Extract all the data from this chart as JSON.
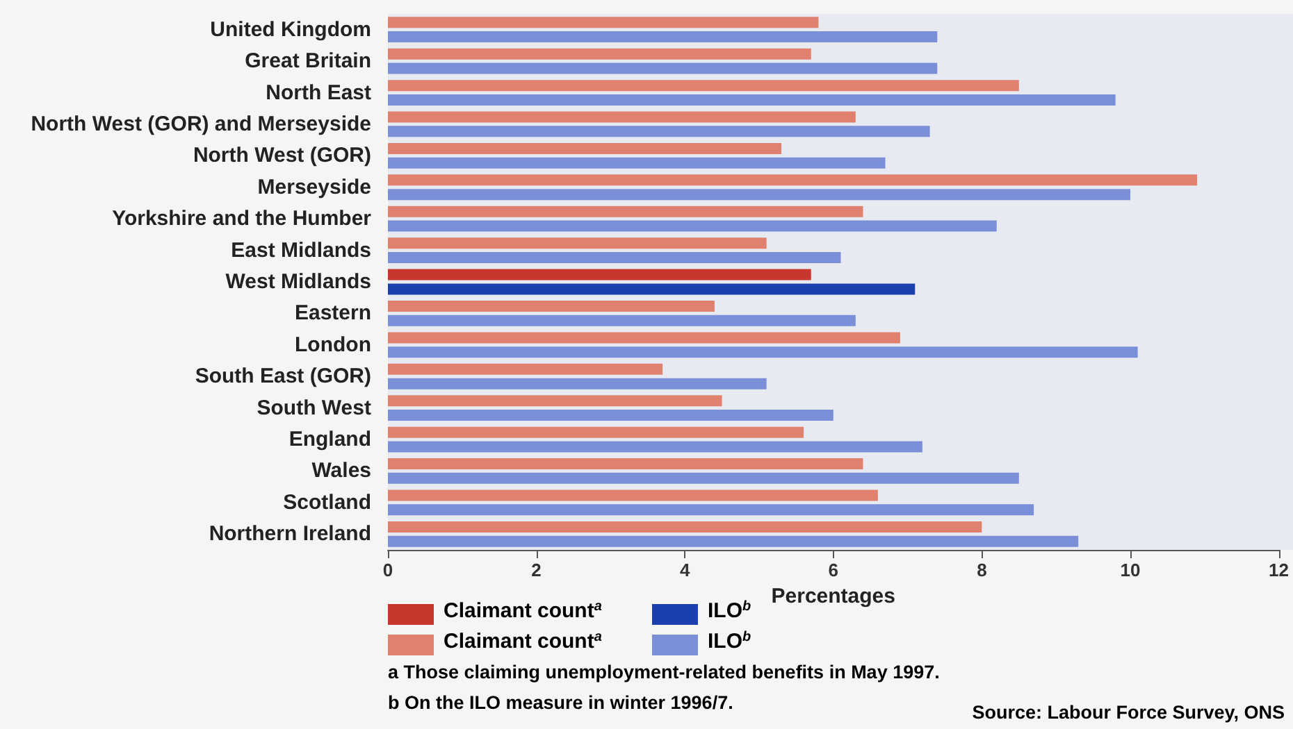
{
  "chart_data": {
    "type": "bar",
    "orientation": "horizontal",
    "categories": [
      "United Kingdom",
      "Great Britain",
      "North East",
      "North West (GOR) and Merseyside",
      "North West (GOR)",
      "Merseyside",
      "Yorkshire and the Humber",
      "East Midlands",
      "West Midlands",
      "Eastern",
      "London",
      "South East (GOR)",
      "South West",
      "England",
      "Wales",
      "Scotland",
      "Northern Ireland"
    ],
    "series": [
      {
        "name": "Claimant count$^{a}$",
        "colors": [
          "#e0806f",
          "#e0806f",
          "#e0806f",
          "#e0806f",
          "#e0806f",
          "#e0806f",
          "#e0806f",
          "#e0806f",
          "#c8372d",
          "#e0806f",
          "#e0806f",
          "#e0806f",
          "#e0806f",
          "#e0806f",
          "#e0806f",
          "#e0806f",
          "#e0806f"
        ],
        "values": [
          5.8,
          5.7,
          8.5,
          6.3,
          5.3,
          10.9,
          6.4,
          5.1,
          5.7,
          4.4,
          6.9,
          3.7,
          4.5,
          5.6,
          6.4,
          6.6,
          8.0
        ]
      },
      {
        "name": "ILO$^{b}$",
        "colors": [
          "#7a8fd8",
          "#7a8fd8",
          "#7a8fd8",
          "#7a8fd8",
          "#7a8fd8",
          "#7a8fd8",
          "#7a8fd8",
          "#7a8fd8",
          "#1c3fae",
          "#7a8fd8",
          "#7a8fd8",
          "#7a8fd8",
          "#7a8fd8",
          "#7a8fd8",
          "#7a8fd8",
          "#7a8fd8",
          "#7a8fd8"
        ],
        "values": [
          7.4,
          7.4,
          9.8,
          7.3,
          6.7,
          10.0,
          8.2,
          6.1,
          7.1,
          6.3,
          10.1,
          5.1,
          6.0,
          7.2,
          8.5,
          8.7,
          9.3
        ]
      }
    ],
    "xlabel": "Percentages",
    "xlim": [
      0,
      12
    ],
    "xticks": [
      0,
      2,
      4,
      6,
      8,
      10,
      12
    ],
    "grid": false,
    "legend": "bottom left",
    "annotations": [
      "a Those claiming unemployment-related benefits in May 1997.",
      "b On the ILO measure in winter 1996/7.",
      "Source: Labour Force Survey, ONS"
    ]
  }
}
